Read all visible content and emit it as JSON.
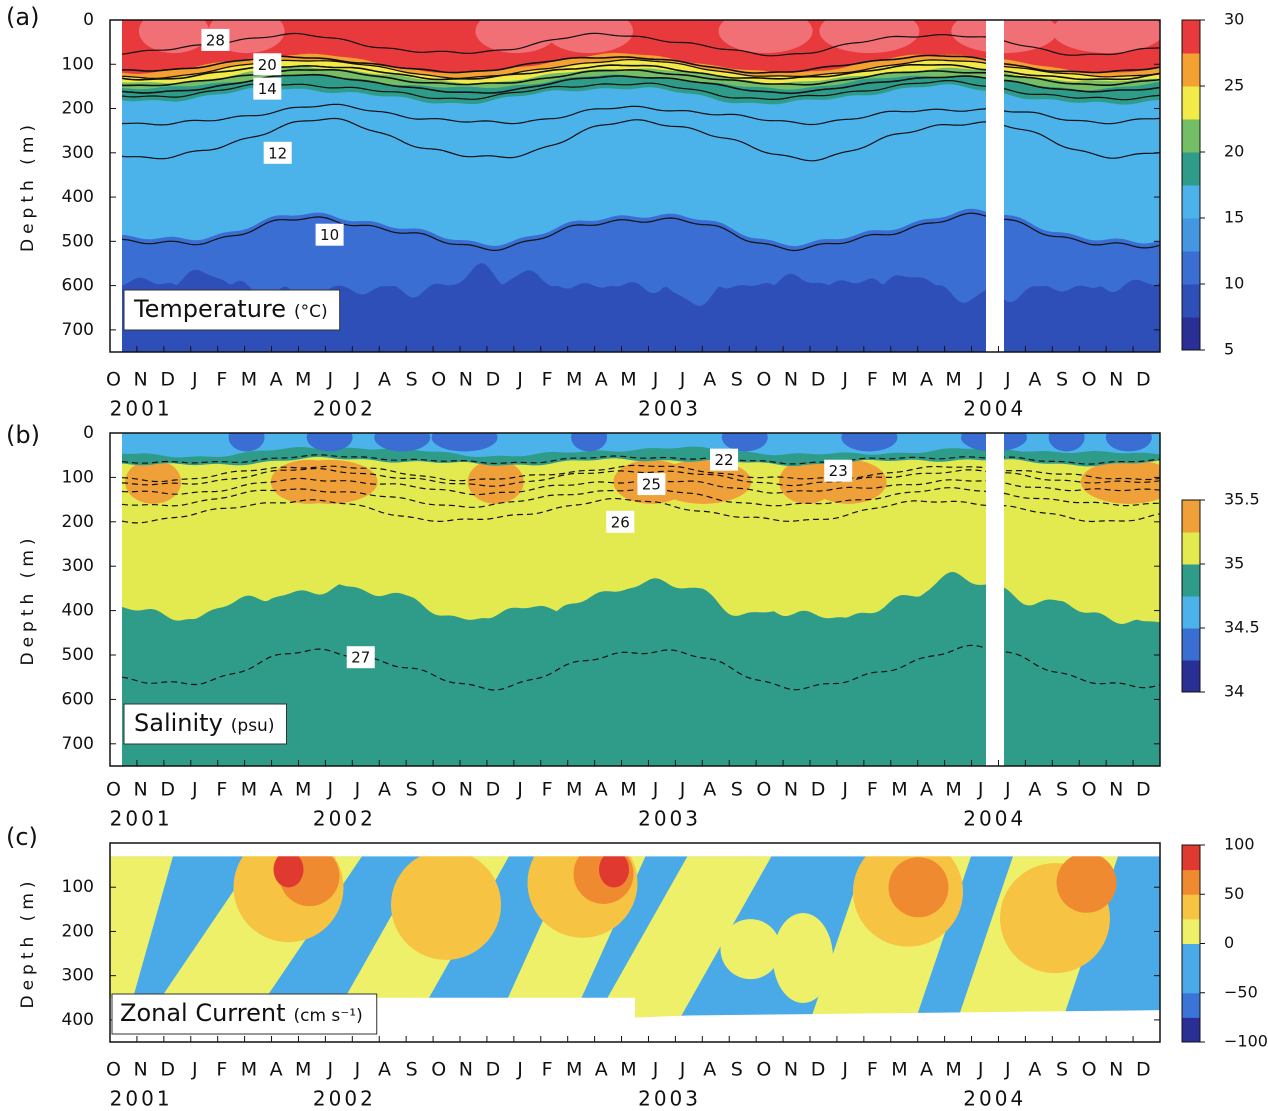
{
  "chart_data": [
    {
      "type": "contour",
      "panel": "(a)",
      "title": "Temperature",
      "units": "(°C)",
      "ylabel": "Depth (m)",
      "categories": [
        "O",
        "N",
        "D",
        "J",
        "F",
        "M",
        "A",
        "M",
        "J",
        "J",
        "A",
        "S",
        "O",
        "N",
        "D",
        "J",
        "F",
        "M",
        "A",
        "M",
        "J",
        "J",
        "A",
        "S",
        "O",
        "N",
        "D",
        "J",
        "F",
        "M",
        "A",
        "M",
        "J",
        "J",
        "A",
        "S",
        "O",
        "N",
        "D"
      ],
      "years": [
        "2001",
        "2002",
        "2003",
        "2004"
      ],
      "ylim": [
        0,
        750
      ],
      "yticks": [
        0,
        100,
        200,
        300,
        400,
        500,
        600,
        700
      ],
      "clim": [
        5,
        30
      ],
      "cticks": [
        5,
        10,
        15,
        20,
        25,
        30
      ],
      "colormap": [
        "#2a2f96",
        "#2f4fb8",
        "#3a6ed2",
        "#4496e0",
        "#4cb2ea",
        "#2e9c88",
        "#74bf66",
        "#f2ea46",
        "#f3a232",
        "#e8393c"
      ],
      "contour_labels": [
        28,
        20,
        14,
        12,
        10
      ]
    },
    {
      "type": "contour",
      "panel": "(b)",
      "title": "Salinity",
      "units": "(psu)",
      "ylabel": "Depth (m)",
      "categories": [
        "O",
        "N",
        "D",
        "J",
        "F",
        "M",
        "A",
        "M",
        "J",
        "J",
        "A",
        "S",
        "O",
        "N",
        "D",
        "J",
        "F",
        "M",
        "A",
        "M",
        "J",
        "J",
        "A",
        "S",
        "O",
        "N",
        "D",
        "J",
        "F",
        "M",
        "A",
        "M",
        "J",
        "J",
        "A",
        "S",
        "O",
        "N",
        "D"
      ],
      "years": [
        "2001",
        "2002",
        "2003",
        "2004"
      ],
      "ylim": [
        0,
        750
      ],
      "yticks": [
        0,
        100,
        200,
        300,
        400,
        500,
        600,
        700
      ],
      "clim": [
        34,
        35.5
      ],
      "cticks": [
        34,
        34.5,
        35,
        35.5
      ],
      "colormap": [
        "#2a2f96",
        "#3a6ed2",
        "#4cb2ea",
        "#2e9c88",
        "#e2ea50",
        "#f0a038"
      ],
      "contour_labels": [
        22,
        25,
        23,
        26,
        27
      ]
    },
    {
      "type": "contour",
      "panel": "(c)",
      "title": "Zonal Current",
      "units": "(cm s⁻¹)",
      "ylabel": "Depth (m)",
      "categories": [
        "O",
        "N",
        "D",
        "J",
        "F",
        "M",
        "A",
        "M",
        "J",
        "J",
        "A",
        "S",
        "O",
        "N",
        "D",
        "J",
        "F",
        "M",
        "A",
        "M",
        "J",
        "J",
        "A",
        "S",
        "O",
        "N",
        "D",
        "J",
        "F",
        "M",
        "A",
        "M",
        "J",
        "J",
        "A",
        "S",
        "O",
        "N",
        "D"
      ],
      "years": [
        "2001",
        "2002",
        "2003",
        "2004"
      ],
      "ylim": [
        0,
        450
      ],
      "yticks": [
        100,
        200,
        300,
        400
      ],
      "clim": [
        -100,
        100
      ],
      "cticks": [
        {
          "value": -100,
          "label": "−100"
        },
        {
          "value": -50,
          "label": "−50"
        },
        0,
        50,
        100
      ],
      "colormap": [
        "#2a2f96",
        "#3a74d6",
        "#4aaae8",
        "#4aaae8",
        "#eef06a",
        "#f6c442",
        "#f08a30",
        "#e03a30"
      ]
    }
  ]
}
